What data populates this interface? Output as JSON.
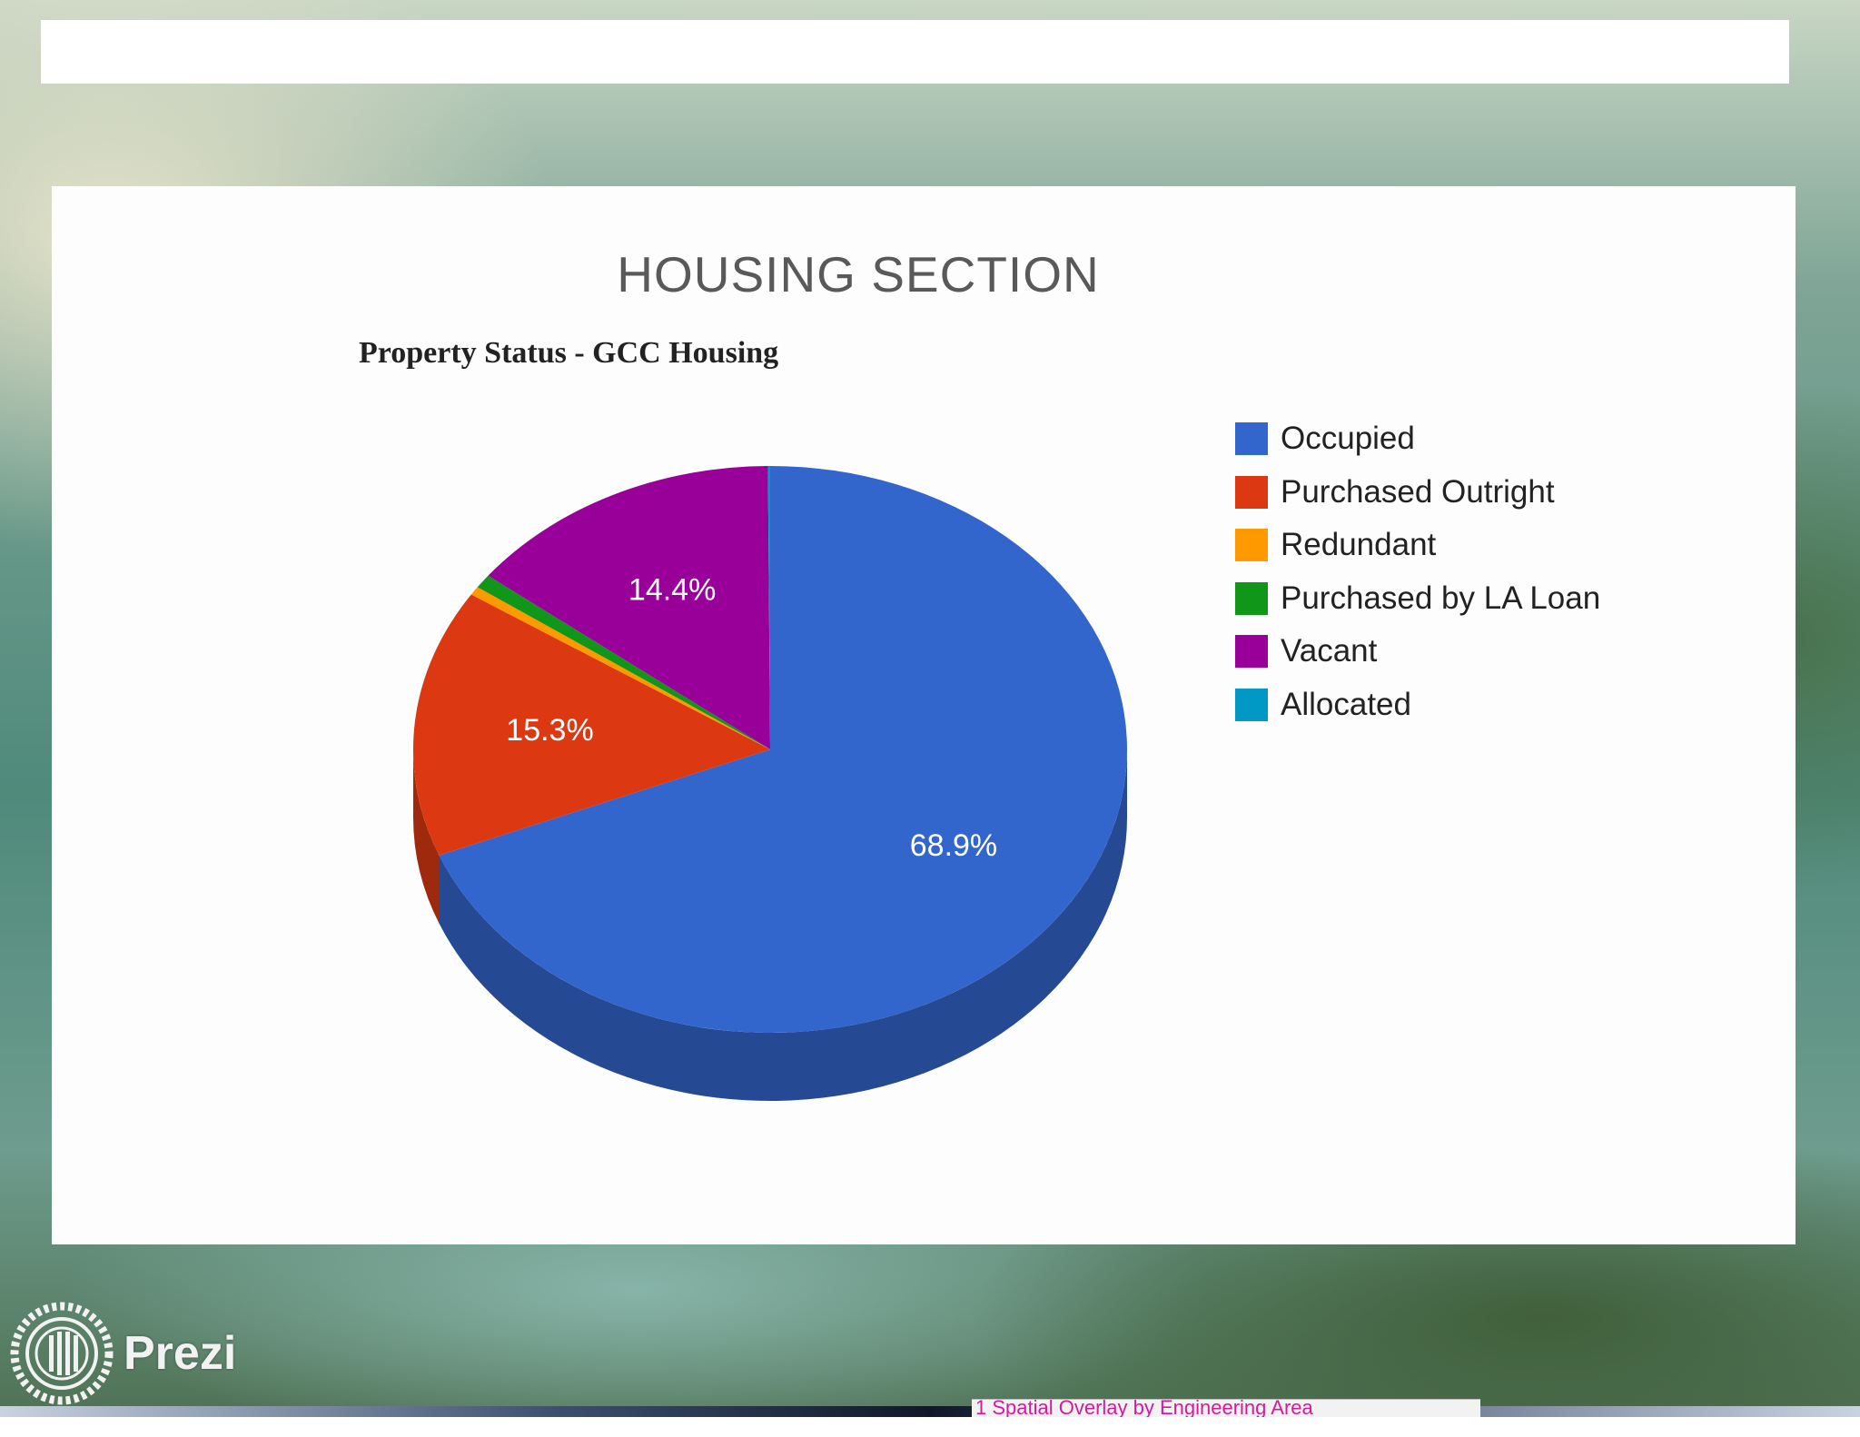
{
  "slide": {
    "title": "HOUSING SECTION"
  },
  "chart_data": {
    "type": "pie",
    "title": "Property Status - GCC Housing",
    "categories": [
      "Occupied",
      "Purchased Outright",
      "Redundant",
      "Purchased by LA Loan",
      "Vacant",
      "Allocated"
    ],
    "values": [
      68.9,
      15.3,
      0.5,
      0.8,
      14.4,
      0.1
    ],
    "data_labels": [
      "68.9%",
      "15.3%",
      "",
      "",
      "14.4%",
      ""
    ],
    "colors": [
      "#3366cc",
      "#dc3912",
      "#ff9900",
      "#109618",
      "#990099",
      "#0099c6"
    ],
    "legend": "right",
    "style": "3d"
  },
  "brand": {
    "name": "Prezi"
  },
  "taskbar": {
    "active_item": "1 Spatial Overlay by Engineering Area"
  }
}
